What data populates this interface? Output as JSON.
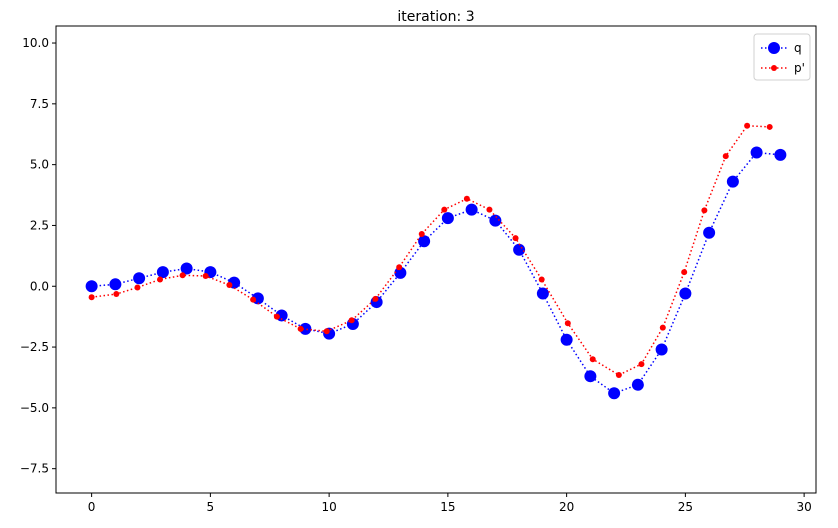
{
  "chart_data": {
    "type": "line",
    "title": "iteration: 3",
    "xlabel": "",
    "ylabel": "",
    "xlim": [
      -1.5,
      30.5
    ],
    "ylim": [
      -8.5,
      10.7
    ],
    "xticks": [
      0,
      5,
      10,
      15,
      20,
      25,
      30
    ],
    "yticks": [
      -7.5,
      -5.0,
      -2.5,
      0.0,
      2.5,
      5.0,
      7.5,
      10.0
    ],
    "xtick_labels": [
      "0",
      "5",
      "10",
      "15",
      "20",
      "25",
      "30"
    ],
    "ytick_labels": [
      "−7.5",
      "−5.0",
      "−2.5",
      "0.0",
      "2.5",
      "5.0",
      "7.5",
      "10.0"
    ],
    "grid": false,
    "legend": "top-right",
    "series": [
      {
        "name": "q",
        "color": "#0000ff",
        "marker_size": 6,
        "linestyle": "dotted",
        "x": [
          0,
          1,
          2,
          3,
          4,
          5,
          6,
          7,
          8,
          9,
          10,
          11,
          12,
          13,
          14,
          15,
          16,
          17,
          18,
          19,
          20,
          21,
          22,
          23,
          24,
          25,
          26,
          27,
          28,
          29
        ],
        "y": [
          0.0,
          0.08,
          0.33,
          0.58,
          0.73,
          0.58,
          0.15,
          -0.5,
          -1.2,
          -1.75,
          -1.95,
          -1.55,
          -0.65,
          0.55,
          1.85,
          2.8,
          3.15,
          2.7,
          1.5,
          -0.3,
          -2.2,
          -3.7,
          -4.4,
          -4.05,
          -2.6,
          -0.3,
          2.2,
          4.3,
          5.5,
          5.4
        ]
      },
      {
        "name": "p'",
        "color": "#ff0000",
        "marker_size": 3,
        "linestyle": "dotted",
        "x": [
          0,
          1.04,
          1.93,
          2.88,
          3.83,
          4.8,
          5.8,
          6.8,
          7.8,
          8.8,
          9.9,
          10.95,
          11.95,
          12.95,
          13.9,
          14.85,
          15.8,
          16.75,
          17.85,
          18.95,
          20.05,
          21.1,
          22.2,
          23.15,
          24.05,
          24.95,
          25.8,
          26.7,
          27.6,
          28.55
        ],
        "y": [
          -0.45,
          -0.32,
          -0.05,
          0.28,
          0.45,
          0.42,
          0.05,
          -0.55,
          -1.25,
          -1.75,
          -1.85,
          -1.4,
          -0.52,
          0.78,
          2.15,
          3.15,
          3.6,
          3.15,
          1.98,
          0.28,
          -1.52,
          -3.0,
          -3.65,
          -3.2,
          -1.7,
          0.58,
          3.12,
          5.35,
          6.6,
          6.55
        ]
      }
    ]
  }
}
